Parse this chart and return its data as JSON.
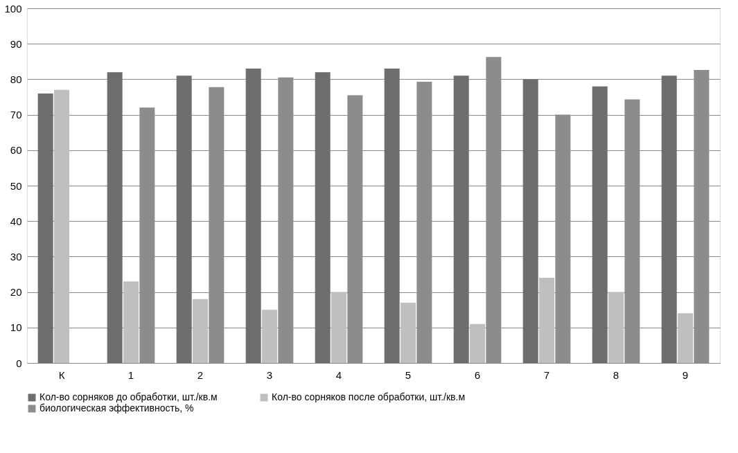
{
  "chart_data": {
    "type": "bar",
    "categories": [
      "К",
      "1",
      "2",
      "3",
      "4",
      "5",
      "6",
      "7",
      "8",
      "9"
    ],
    "series": [
      {
        "name": "Кол-во сорняков до обработки, шт./кв.м",
        "color": "#6d6d6d",
        "values": [
          76,
          82,
          81,
          83,
          82,
          83,
          81,
          80,
          78,
          81
        ]
      },
      {
        "name": "Кол-во сорняков после обработки, шт./кв.м",
        "color": "#bfbfbf",
        "values": [
          77,
          23,
          18,
          15,
          20,
          17,
          11,
          24,
          20,
          14
        ]
      },
      {
        "name": "биологическая эффективность, %",
        "color": "#8c8c8c",
        "values": [
          null,
          72,
          77.8,
          80.5,
          75.5,
          79.3,
          86.3,
          70,
          74.3,
          82.6
        ]
      }
    ],
    "ylim": [
      0,
      100
    ],
    "yticks": [
      0,
      10,
      20,
      30,
      40,
      50,
      60,
      70,
      80,
      90,
      100
    ],
    "grid": "y",
    "legend": "bottom"
  }
}
